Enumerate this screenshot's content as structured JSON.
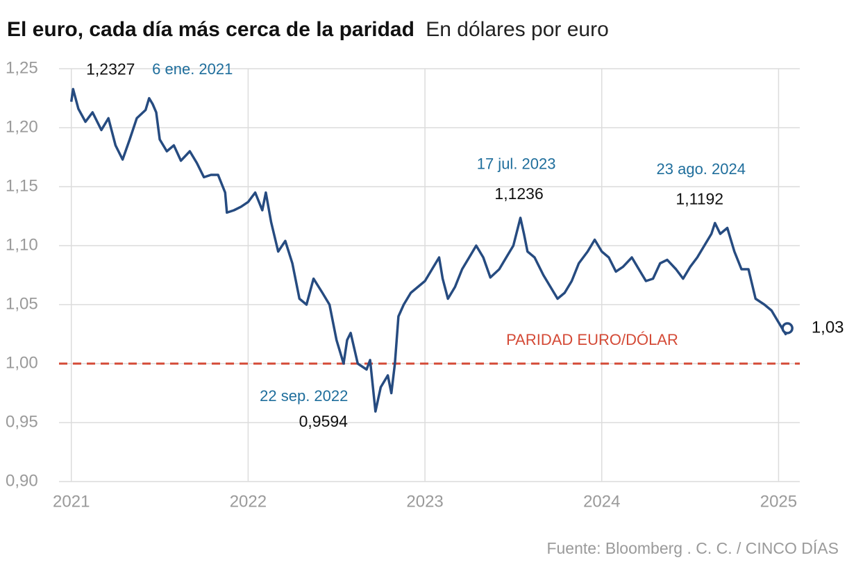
{
  "chart_data": {
    "type": "line",
    "title": "El euro, cada día más cerca de la paridad",
    "subtitle": "En dólares por euro",
    "source": "Fuente: Bloomberg . C. C. / CINCO DÍAS",
    "color": "#264b80",
    "x": [
      2021.0,
      2021.01,
      2021.04,
      2021.08,
      2021.12,
      2021.17,
      2021.21,
      2021.25,
      2021.29,
      2021.33,
      2021.37,
      2021.42,
      2021.44,
      2021.46,
      2021.48,
      2021.5,
      2021.54,
      2021.58,
      2021.62,
      2021.67,
      2021.71,
      2021.75,
      2021.79,
      2021.83,
      2021.87,
      2021.88,
      2021.92,
      2021.96,
      2022.0,
      2022.04,
      2022.08,
      2022.1,
      2022.13,
      2022.17,
      2022.21,
      2022.25,
      2022.29,
      2022.33,
      2022.37,
      2022.42,
      2022.46,
      2022.5,
      2022.54,
      2022.56,
      2022.58,
      2022.62,
      2022.67,
      2022.69,
      2022.72,
      2022.75,
      2022.79,
      2022.81,
      2022.83,
      2022.85,
      2022.88,
      2022.92,
      2022.96,
      2023.0,
      2023.04,
      2023.08,
      2023.1,
      2023.13,
      2023.17,
      2023.21,
      2023.25,
      2023.29,
      2023.33,
      2023.37,
      2023.42,
      2023.46,
      2023.5,
      2023.54,
      2023.56,
      2023.58,
      2023.62,
      2023.67,
      2023.71,
      2023.75,
      2023.79,
      2023.83,
      2023.87,
      2023.92,
      2023.96,
      2024.0,
      2024.04,
      2024.08,
      2024.12,
      2024.17,
      2024.21,
      2024.25,
      2024.29,
      2024.33,
      2024.37,
      2024.42,
      2024.46,
      2024.5,
      2024.54,
      2024.58,
      2024.62,
      2024.64,
      2024.67,
      2024.71,
      2024.75,
      2024.79,
      2024.83,
      2024.87,
      2024.92,
      2024.96,
      2025.0,
      2025.04,
      2025.05
    ],
    "values": [
      1.222,
      1.2327,
      1.216,
      1.205,
      1.213,
      1.198,
      1.208,
      1.185,
      1.173,
      1.19,
      1.208,
      1.215,
      1.225,
      1.22,
      1.213,
      1.19,
      1.18,
      1.185,
      1.172,
      1.18,
      1.17,
      1.158,
      1.16,
      1.16,
      1.145,
      1.128,
      1.13,
      1.133,
      1.137,
      1.145,
      1.13,
      1.145,
      1.12,
      1.095,
      1.104,
      1.085,
      1.055,
      1.05,
      1.072,
      1.06,
      1.05,
      1.02,
      1.0,
      1.02,
      1.026,
      1.0,
      0.995,
      1.003,
      0.9594,
      0.98,
      0.99,
      0.975,
      1.0,
      1.04,
      1.05,
      1.06,
      1.065,
      1.07,
      1.08,
      1.09,
      1.072,
      1.055,
      1.065,
      1.08,
      1.09,
      1.1,
      1.09,
      1.073,
      1.08,
      1.09,
      1.1,
      1.1236,
      1.11,
      1.095,
      1.09,
      1.075,
      1.065,
      1.055,
      1.06,
      1.07,
      1.085,
      1.095,
      1.105,
      1.095,
      1.09,
      1.078,
      1.082,
      1.09,
      1.08,
      1.07,
      1.072,
      1.085,
      1.088,
      1.08,
      1.072,
      1.082,
      1.09,
      1.1,
      1.11,
      1.1192,
      1.11,
      1.115,
      1.095,
      1.08,
      1.08,
      1.055,
      1.05,
      1.045,
      1.035,
      1.025,
      1.03
    ],
    "xlim": [
      2020.95,
      2025.12
    ],
    "ylim": [
      0.9,
      1.25
    ],
    "xticks": [
      2021,
      2022,
      2023,
      2024,
      2025
    ],
    "yticks": [
      {
        "value": 0.9,
        "label": "0,90"
      },
      {
        "value": 0.95,
        "label": "0,95"
      },
      {
        "value": 1.0,
        "label": "1,00"
      },
      {
        "value": 1.05,
        "label": "1,05"
      },
      {
        "value": 1.1,
        "label": "1,10"
      },
      {
        "value": 1.15,
        "label": "1,15"
      },
      {
        "value": 1.2,
        "label": "1,20"
      },
      {
        "value": 1.25,
        "label": "1,25"
      }
    ],
    "grid": true,
    "reference_line": {
      "value": 1.0,
      "label": "PARIDAD EURO/DÓLAR",
      "color": "#d44a36"
    },
    "annotations": [
      {
        "x": 2021.01,
        "y": 1.2327,
        "label": "1,2327",
        "date": "6 ene. 2021"
      },
      {
        "x": 2022.72,
        "y": 0.9594,
        "label": "0,9594",
        "date": "22 sep. 2022"
      },
      {
        "x": 2023.54,
        "y": 1.1236,
        "label": "1,1236",
        "date": "17 jul. 2023"
      },
      {
        "x": 2024.64,
        "y": 1.1192,
        "label": "1,1192",
        "date": "23 ago. 2024"
      },
      {
        "x": 2025.05,
        "y": 1.03,
        "label": "1,03"
      }
    ]
  }
}
